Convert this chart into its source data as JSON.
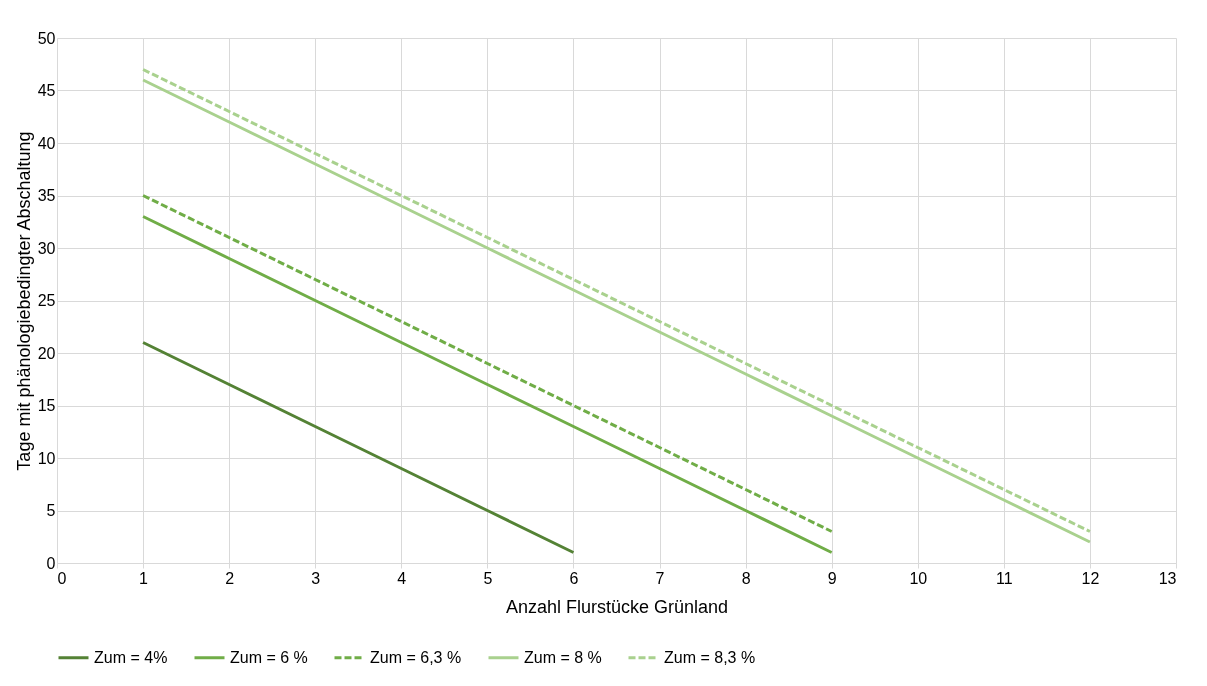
{
  "chart_data": {
    "type": "line",
    "xlabel": "Anzahl Flurstücke Grünland",
    "ylabel": "Tage mit phänologiebedingter Abschaltung",
    "xlim": [
      0,
      13
    ],
    "xticks": [
      0,
      1,
      2,
      3,
      4,
      5,
      6,
      7,
      8,
      9,
      10,
      11,
      12,
      13
    ],
    "ylim": [
      0,
      50
    ],
    "yticks": [
      0,
      5,
      10,
      15,
      20,
      25,
      30,
      35,
      40,
      45,
      50
    ],
    "grid": true,
    "legend": "bottom",
    "marker": "none",
    "series": [
      {
        "name": "Zum = 4%",
        "color": "#548235",
        "line_style": "solid",
        "x": [
          1,
          2,
          3,
          4,
          5,
          6
        ],
        "values": [
          21,
          17,
          13,
          9,
          5,
          1
        ]
      },
      {
        "name": "Zum = 6 %",
        "color": "#70ad47",
        "line_style": "solid",
        "x": [
          1,
          2,
          3,
          4,
          5,
          6,
          7,
          8,
          9
        ],
        "values": [
          33,
          29,
          25,
          21,
          17,
          13,
          9,
          5,
          1
        ]
      },
      {
        "name": "Zum = 6,3 %",
        "color": "#70ad47",
        "line_style": "dashed",
        "x": [
          1,
          2,
          3,
          4,
          5,
          6,
          7,
          8,
          9
        ],
        "values": [
          35,
          31,
          27,
          23,
          19,
          15,
          11,
          7,
          3
        ]
      },
      {
        "name": "Zum = 8 %",
        "color": "#a9d18e",
        "line_style": "solid",
        "x": [
          1,
          2,
          3,
          4,
          5,
          6,
          7,
          8,
          9,
          10,
          11,
          12
        ],
        "values": [
          46,
          42,
          38,
          34,
          30,
          26,
          22,
          18,
          14,
          10,
          6,
          2
        ]
      },
      {
        "name": "Zum = 8,3 %",
        "color": "#a9d18e",
        "line_style": "dashed",
        "x": [
          1,
          2,
          3,
          4,
          5,
          6,
          7,
          8,
          9,
          10,
          11,
          12
        ],
        "values": [
          47,
          43,
          39,
          35,
          31,
          27,
          23,
          19,
          15,
          11,
          7,
          3
        ]
      }
    ]
  }
}
